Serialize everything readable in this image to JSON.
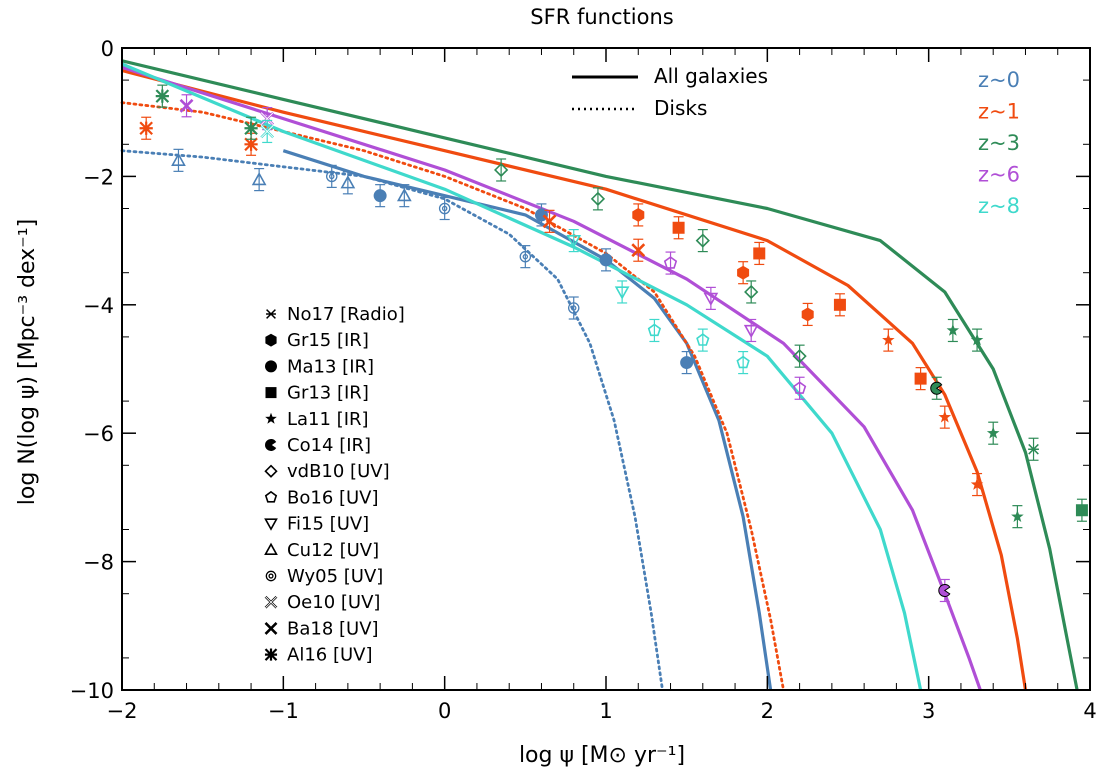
{
  "chart_data": {
    "type": "line",
    "title": "SFR functions",
    "xlabel": "log ψ [M⊙ yr⁻¹]",
    "ylabel": "log N(log ψ) [Mpc⁻³ dex⁻¹]",
    "xlim": [
      -2,
      4
    ],
    "ylim": [
      -10,
      0
    ],
    "x_ticks": [
      "−2",
      "−1",
      "0",
      "1",
      "2",
      "3",
      "4"
    ],
    "y_ticks": [
      "0",
      "−2",
      "−4",
      "−6",
      "−8",
      "−10"
    ],
    "style_legend": [
      {
        "label": "All galaxies",
        "style": "solid"
      },
      {
        "label": "Disks",
        "style": "dotted"
      }
    ],
    "redshift_legend": [
      {
        "label": "z~0",
        "color": "#4a7fb5"
      },
      {
        "label": "z~1",
        "color": "#f04b10"
      },
      {
        "label": "z~3",
        "color": "#2e8b57"
      },
      {
        "label": "z~6",
        "color": "#b04fd6"
      },
      {
        "label": "z~8",
        "color": "#3fd9cc"
      }
    ],
    "marker_legend": [
      {
        "label": "No17 [Radio]",
        "symbol": "asterisk-x"
      },
      {
        "label": "Gr15 [IR]",
        "symbol": "hexagon-filled"
      },
      {
        "label": "Ma13 [IR]",
        "symbol": "circle-filled"
      },
      {
        "label": "Gr13 [IR]",
        "symbol": "square-filled"
      },
      {
        "label": "La11 [IR]",
        "symbol": "star-filled"
      },
      {
        "label": "Co14 [IR]",
        "symbol": "pacman-filled"
      },
      {
        "label": "vdB10 [UV]",
        "symbol": "diamond-open"
      },
      {
        "label": "Bo16 [UV]",
        "symbol": "pentagon-open"
      },
      {
        "label": "Fi15 [UV]",
        "symbol": "triangle-down-open"
      },
      {
        "label": "Cu12 [UV]",
        "symbol": "triangle-up-open"
      },
      {
        "label": "Wy05 [UV]",
        "symbol": "spiral"
      },
      {
        "label": "Oe10 [UV]",
        "symbol": "cross-boxed"
      },
      {
        "label": "Ba18 [UV]",
        "symbol": "x-thick"
      },
      {
        "label": "Al16 [UV]",
        "symbol": "asterisk-bold"
      }
    ],
    "curves": [
      {
        "z": "z~0",
        "style": "solid",
        "color": "#4a7fb5",
        "x": [
          -1.0,
          -0.5,
          0.0,
          0.5,
          1.0,
          1.3,
          1.5,
          1.7,
          1.85,
          1.95,
          2.02
        ],
        "y": [
          -1.6,
          -2.0,
          -2.3,
          -2.6,
          -3.3,
          -3.9,
          -4.6,
          -5.8,
          -7.3,
          -8.8,
          -10.0
        ]
      },
      {
        "z": "z~0",
        "style": "dotted",
        "color": "#4a7fb5",
        "x": [
          -2.0,
          -1.5,
          -1.0,
          -0.5,
          0.0,
          0.4,
          0.7,
          0.9,
          1.05,
          1.18,
          1.28,
          1.35
        ],
        "y": [
          -1.6,
          -1.7,
          -1.85,
          -2.0,
          -2.35,
          -2.9,
          -3.6,
          -4.6,
          -5.8,
          -7.3,
          -8.8,
          -10.0
        ]
      },
      {
        "z": "z~1",
        "style": "solid",
        "color": "#f04b10",
        "x": [
          -2.0,
          -1.0,
          0.0,
          1.0,
          2.0,
          2.5,
          2.9,
          3.1,
          3.3,
          3.45,
          3.55,
          3.6
        ],
        "y": [
          -0.35,
          -1.0,
          -1.6,
          -2.2,
          -3.0,
          -3.7,
          -4.6,
          -5.4,
          -6.6,
          -7.9,
          -9.2,
          -10.0
        ]
      },
      {
        "z": "z~1",
        "style": "dotted",
        "color": "#f04b10",
        "x": [
          -2.0,
          -1.5,
          -1.0,
          -0.5,
          0.0,
          0.5,
          1.0,
          1.3,
          1.55,
          1.75,
          1.9,
          2.02,
          2.1
        ],
        "y": [
          -0.85,
          -1.0,
          -1.3,
          -1.6,
          -2.0,
          -2.5,
          -3.2,
          -3.8,
          -4.8,
          -6.0,
          -7.5,
          -8.9,
          -10.0
        ]
      },
      {
        "z": "z~3",
        "style": "solid",
        "color": "#2e8b57",
        "x": [
          -2.0,
          -1.0,
          0.0,
          1.0,
          2.0,
          2.7,
          3.1,
          3.4,
          3.6,
          3.75,
          3.85,
          3.92
        ],
        "y": [
          -0.2,
          -0.8,
          -1.4,
          -2.0,
          -2.5,
          -3.0,
          -3.8,
          -5.0,
          -6.3,
          -7.8,
          -9.1,
          -10.0
        ]
      },
      {
        "z": "z~6",
        "style": "solid",
        "color": "#b04fd6",
        "x": [
          -2.0,
          -1.0,
          0.0,
          0.8,
          1.5,
          2.1,
          2.6,
          2.9,
          3.1,
          3.25,
          3.32
        ],
        "y": [
          -0.3,
          -1.1,
          -1.9,
          -2.7,
          -3.6,
          -4.6,
          -5.9,
          -7.2,
          -8.5,
          -9.5,
          -10.0
        ]
      },
      {
        "z": "z~8",
        "style": "solid",
        "color": "#3fd9cc",
        "x": [
          -2.0,
          -1.0,
          0.0,
          0.8,
          1.5,
          2.0,
          2.4,
          2.7,
          2.85,
          2.95
        ],
        "y": [
          -0.25,
          -1.3,
          -2.2,
          -3.1,
          -4.0,
          -4.8,
          -6.0,
          -7.5,
          -8.8,
          -10.0
        ]
      }
    ],
    "points": [
      {
        "z": "z~0",
        "marker": "triangle-up-open",
        "x": -1.65,
        "y": -1.75
      },
      {
        "z": "z~0",
        "marker": "triangle-up-open",
        "x": -1.15,
        "y": -2.05
      },
      {
        "z": "z~0",
        "marker": "triangle-up-open",
        "x": -0.6,
        "y": -2.1
      },
      {
        "z": "z~0",
        "marker": "triangle-up-open",
        "x": -0.25,
        "y": -2.3
      },
      {
        "z": "z~0",
        "marker": "spiral",
        "x": -0.7,
        "y": -2.0
      },
      {
        "z": "z~0",
        "marker": "spiral",
        "x": 0.0,
        "y": -2.5
      },
      {
        "z": "z~0",
        "marker": "spiral",
        "x": 0.5,
        "y": -3.25
      },
      {
        "z": "z~0",
        "marker": "spiral",
        "x": 0.8,
        "y": -4.05
      },
      {
        "z": "z~0",
        "marker": "circle-filled",
        "x": -0.4,
        "y": -2.3
      },
      {
        "z": "z~0",
        "marker": "circle-filled",
        "x": 0.6,
        "y": -2.6
      },
      {
        "z": "z~0",
        "marker": "circle-filled",
        "x": 1.0,
        "y": -3.3
      },
      {
        "z": "z~0",
        "marker": "circle-filled",
        "x": 1.5,
        "y": -4.9
      },
      {
        "z": "z~1",
        "marker": "asterisk-bold",
        "x": -1.85,
        "y": -1.25
      },
      {
        "z": "z~1",
        "marker": "asterisk-bold",
        "x": -1.2,
        "y": -1.5
      },
      {
        "z": "z~1",
        "marker": "hexagon-filled",
        "x": 1.2,
        "y": -2.6
      },
      {
        "z": "z~1",
        "marker": "hexagon-filled",
        "x": 1.85,
        "y": -3.5
      },
      {
        "z": "z~1",
        "marker": "hexagon-filled",
        "x": 2.25,
        "y": -4.15
      },
      {
        "z": "z~1",
        "marker": "square-filled",
        "x": 1.45,
        "y": -2.8
      },
      {
        "z": "z~1",
        "marker": "square-filled",
        "x": 1.95,
        "y": -3.2
      },
      {
        "z": "z~1",
        "marker": "square-filled",
        "x": 2.45,
        "y": -4.0
      },
      {
        "z": "z~1",
        "marker": "square-filled",
        "x": 2.95,
        "y": -5.15
      },
      {
        "z": "z~1",
        "marker": "star-filled",
        "x": 2.75,
        "y": -4.55
      },
      {
        "z": "z~1",
        "marker": "star-filled",
        "x": 3.1,
        "y": -5.75
      },
      {
        "z": "z~1",
        "marker": "star-filled",
        "x": 3.3,
        "y": -6.8
      },
      {
        "z": "z~1",
        "marker": "x-thick",
        "x": 0.65,
        "y": -2.7
      },
      {
        "z": "z~1",
        "marker": "x-thick",
        "x": 1.2,
        "y": -3.15
      },
      {
        "z": "z~3",
        "marker": "asterisk-bold",
        "x": -1.75,
        "y": -0.75
      },
      {
        "z": "z~3",
        "marker": "asterisk-bold",
        "x": -1.2,
        "y": -1.25
      },
      {
        "z": "z~3",
        "marker": "diamond-open",
        "x": 0.35,
        "y": -1.9
      },
      {
        "z": "z~3",
        "marker": "diamond-open",
        "x": 0.95,
        "y": -2.35
      },
      {
        "z": "z~3",
        "marker": "diamond-open",
        "x": 1.6,
        "y": -3.0
      },
      {
        "z": "z~3",
        "marker": "diamond-open",
        "x": 1.9,
        "y": -3.8
      },
      {
        "z": "z~3",
        "marker": "diamond-open",
        "x": 2.2,
        "y": -4.8
      },
      {
        "z": "z~3",
        "marker": "star-filled",
        "x": 3.15,
        "y": -4.4
      },
      {
        "z": "z~3",
        "marker": "star-filled",
        "x": 3.3,
        "y": -4.55
      },
      {
        "z": "z~3",
        "marker": "star-filled",
        "x": 3.4,
        "y": -6.0
      },
      {
        "z": "z~3",
        "marker": "star-filled",
        "x": 3.55,
        "y": -7.3
      },
      {
        "z": "z~3",
        "marker": "square-filled",
        "x": 3.95,
        "y": -7.2
      },
      {
        "z": "z~3",
        "marker": "asterisk-x",
        "x": 3.65,
        "y": -6.25
      },
      {
        "z": "z~3",
        "marker": "pacman-filled",
        "x": 3.05,
        "y": -5.3
      },
      {
        "z": "z~6",
        "marker": "x-thick",
        "x": -1.6,
        "y": -0.9
      },
      {
        "z": "z~6",
        "marker": "cross-boxed",
        "x": -1.1,
        "y": -1.1
      },
      {
        "z": "z~6",
        "marker": "pentagon-open",
        "x": 1.4,
        "y": -3.35
      },
      {
        "z": "z~6",
        "marker": "pentagon-open",
        "x": 2.2,
        "y": -5.3
      },
      {
        "z": "z~6",
        "marker": "triangle-down-open",
        "x": 1.65,
        "y": -3.9
      },
      {
        "z": "z~6",
        "marker": "triangle-down-open",
        "x": 1.9,
        "y": -4.4
      },
      {
        "z": "z~6",
        "marker": "pacman-filled",
        "x": 3.1,
        "y": -8.45
      },
      {
        "z": "z~8",
        "marker": "cross-boxed",
        "x": -1.1,
        "y": -1.3
      },
      {
        "z": "z~8",
        "marker": "triangle-down-open",
        "x": 0.8,
        "y": -3.0
      },
      {
        "z": "z~8",
        "marker": "triangle-down-open",
        "x": 1.1,
        "y": -3.8
      },
      {
        "z": "z~8",
        "marker": "pentagon-open",
        "x": 1.3,
        "y": -4.4
      },
      {
        "z": "z~8",
        "marker": "pentagon-open",
        "x": 1.6,
        "y": -4.55
      },
      {
        "z": "z~8",
        "marker": "pentagon-open",
        "x": 1.85,
        "y": -4.9
      }
    ]
  }
}
